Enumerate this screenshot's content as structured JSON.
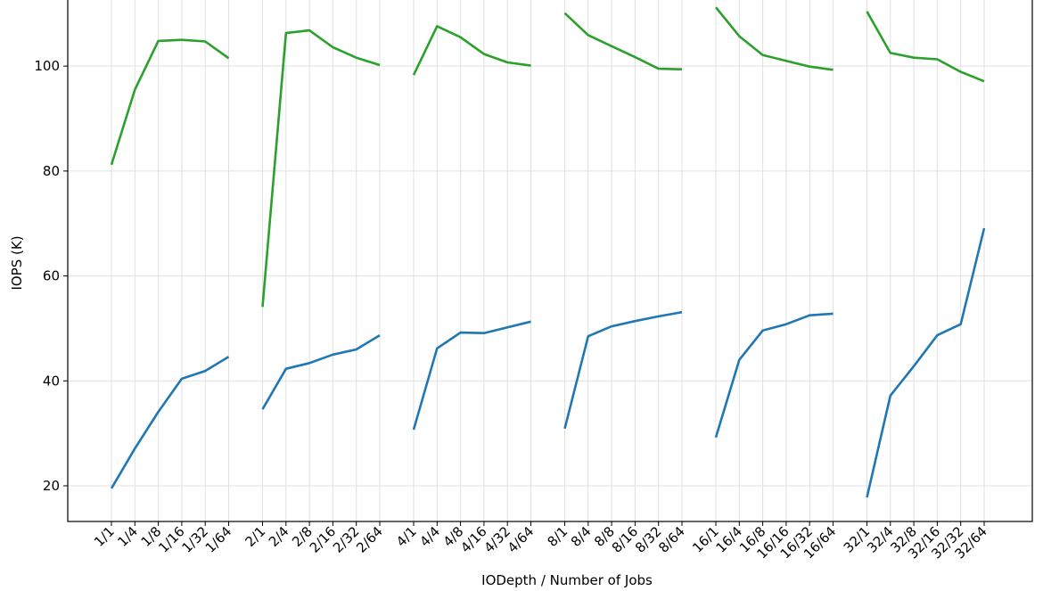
{
  "chart_data": {
    "type": "line",
    "xlabel": "IODepth / Number of Jobs",
    "ylabel": "IOPS (K)",
    "categories": [
      "1/1",
      "1/4",
      "1/8",
      "1/16",
      "1/32",
      "1/64",
      null,
      "2/1",
      "2/4",
      "2/8",
      "2/16",
      "2/32",
      "2/64",
      null,
      "4/1",
      "4/4",
      "4/8",
      "4/16",
      "4/32",
      "4/64",
      null,
      "8/1",
      "8/4",
      "8/8",
      "8/16",
      "8/32",
      "8/64",
      null,
      "16/1",
      "16/4",
      "16/8",
      "16/16",
      "16/32",
      "16/64",
      null,
      "32/1",
      "32/4",
      "32/8",
      "32/16",
      "32/32",
      "32/64"
    ],
    "series": [
      {
        "color": "#2ca02c",
        "values": [
          81.2,
          95.5,
          104.8,
          105.0,
          104.7,
          101.5,
          null,
          54.1,
          106.3,
          106.8,
          103.6,
          101.6,
          100.2,
          null,
          98.3,
          107.6,
          105.5,
          102.3,
          100.7,
          100.1,
          null,
          110.1,
          105.9,
          103.8,
          101.7,
          99.5,
          99.4,
          null,
          111.2,
          105.7,
          102.1,
          101.0,
          99.9,
          99.3,
          null,
          110.4,
          102.5,
          101.6,
          101.3,
          98.9,
          97.1
        ]
      },
      {
        "color": "#1f77b4",
        "values": [
          19.5,
          27.1,
          34.1,
          40.4,
          41.9,
          44.6,
          null,
          34.6,
          42.3,
          43.4,
          45.0,
          46.0,
          48.7,
          null,
          30.7,
          46.2,
          49.2,
          49.1,
          50.2,
          51.3,
          null,
          30.9,
          48.5,
          50.4,
          51.4,
          52.3,
          53.1,
          null,
          29.2,
          44.0,
          49.6,
          50.8,
          52.5,
          52.8,
          null,
          17.8,
          37.2,
          42.8,
          48.7,
          50.8,
          69.1
        ]
      }
    ],
    "ylim": [
      13.2,
      112.6
    ],
    "yticks": [
      20,
      40,
      60,
      80,
      100
    ],
    "grid": true
  }
}
